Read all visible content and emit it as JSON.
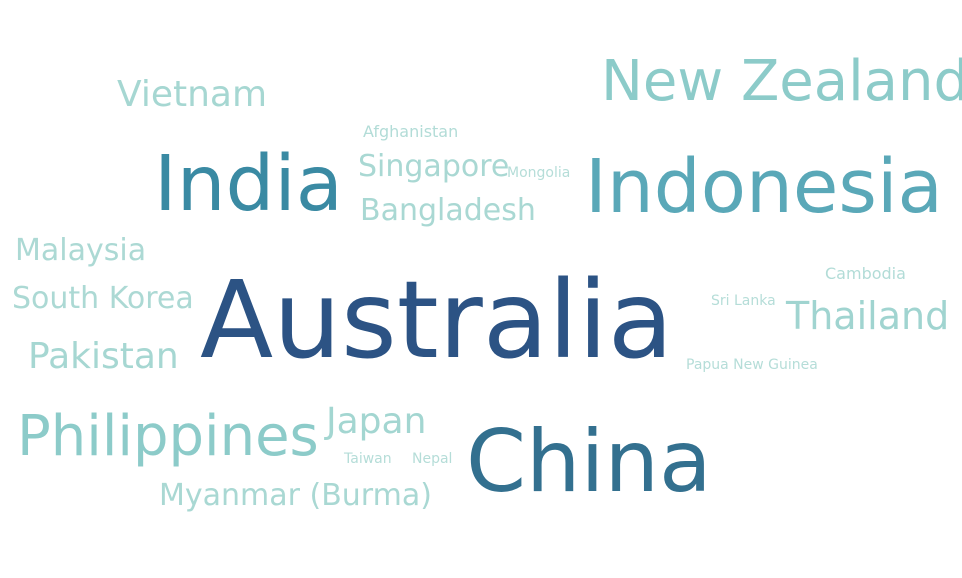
{
  "chart_data": {
    "type": "wordcloud",
    "color_scale": {
      "low": "#a8d8d3",
      "mid": "#4aa3b4",
      "high": "#2a4e80"
    },
    "words": [
      {
        "text": "Australia",
        "weight": 100,
        "color": "#2c5384"
      },
      {
        "text": "China",
        "weight": 78,
        "color": "#33708f"
      },
      {
        "text": "India",
        "weight": 73,
        "color": "#3a8aa3"
      },
      {
        "text": "Indonesia",
        "weight": 72,
        "color": "#5aa8b8"
      },
      {
        "text": "New Zealand",
        "weight": 55,
        "color": "#8ccbc9"
      },
      {
        "text": "Philippines",
        "weight": 53,
        "color": "#8ccbc9"
      },
      {
        "text": "Thailand",
        "weight": 40,
        "color": "#a0d4d0"
      },
      {
        "text": "Japan",
        "weight": 38,
        "color": "#a3d6d1"
      },
      {
        "text": "Vietnam",
        "weight": 37,
        "color": "#a6d7d2"
      },
      {
        "text": "Pakistan",
        "weight": 36,
        "color": "#a6d7d2"
      },
      {
        "text": "Bangladesh",
        "weight": 34,
        "color": "#a9d8d3"
      },
      {
        "text": "Myanmar (Burma)",
        "weight": 33,
        "color": "#a9d8d3"
      },
      {
        "text": "Singapore",
        "weight": 33,
        "color": "#a9d8d3"
      },
      {
        "text": "Malaysia",
        "weight": 32,
        "color": "#acd9d4"
      },
      {
        "text": "South Korea",
        "weight": 31,
        "color": "#acd9d4"
      },
      {
        "text": "Afghanistan",
        "weight": 18,
        "color": "#b2dcd7"
      },
      {
        "text": "Cambodia",
        "weight": 18,
        "color": "#b2dcd7"
      },
      {
        "text": "Mongolia",
        "weight": 16,
        "color": "#b5ddd8"
      },
      {
        "text": "Sri Lanka",
        "weight": 16,
        "color": "#b5ddd8"
      },
      {
        "text": "Papua New Guinea",
        "weight": 16,
        "color": "#b5ddd8"
      },
      {
        "text": "Taiwan",
        "weight": 16,
        "color": "#b5ddd8"
      },
      {
        "text": "Nepal",
        "weight": 16,
        "color": "#b5ddd8"
      }
    ]
  }
}
